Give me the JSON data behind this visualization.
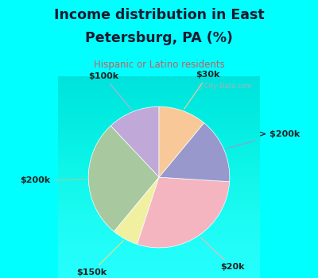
{
  "title_line1": "Income distribution in East",
  "title_line2": "Petersburg, PA (%)",
  "subtitle": "Hispanic or Latino residents",
  "title_color": "#1a1a2e",
  "subtitle_color": "#c06060",
  "bg_cyan": "#00ffff",
  "bg_chart_colors": [
    "#cceee6",
    "#e8f8f4"
  ],
  "labels": [
    "$100k",
    "$200k",
    "$150k",
    "$20k",
    "> $200k",
    "$30k"
  ],
  "sizes": [
    12,
    27,
    6,
    29,
    15,
    11
  ],
  "colors": [
    "#c0a8d8",
    "#a8c8a0",
    "#f0f0a0",
    "#f4b4c0",
    "#9898cc",
    "#f8c898"
  ],
  "line_colors": [
    "#c0a8d8",
    "#a8c8a0",
    "#e0e090",
    "#f4b4c0",
    "#9898cc",
    "#f8c898"
  ],
  "startangle": 90,
  "watermark": "City-Data.com"
}
